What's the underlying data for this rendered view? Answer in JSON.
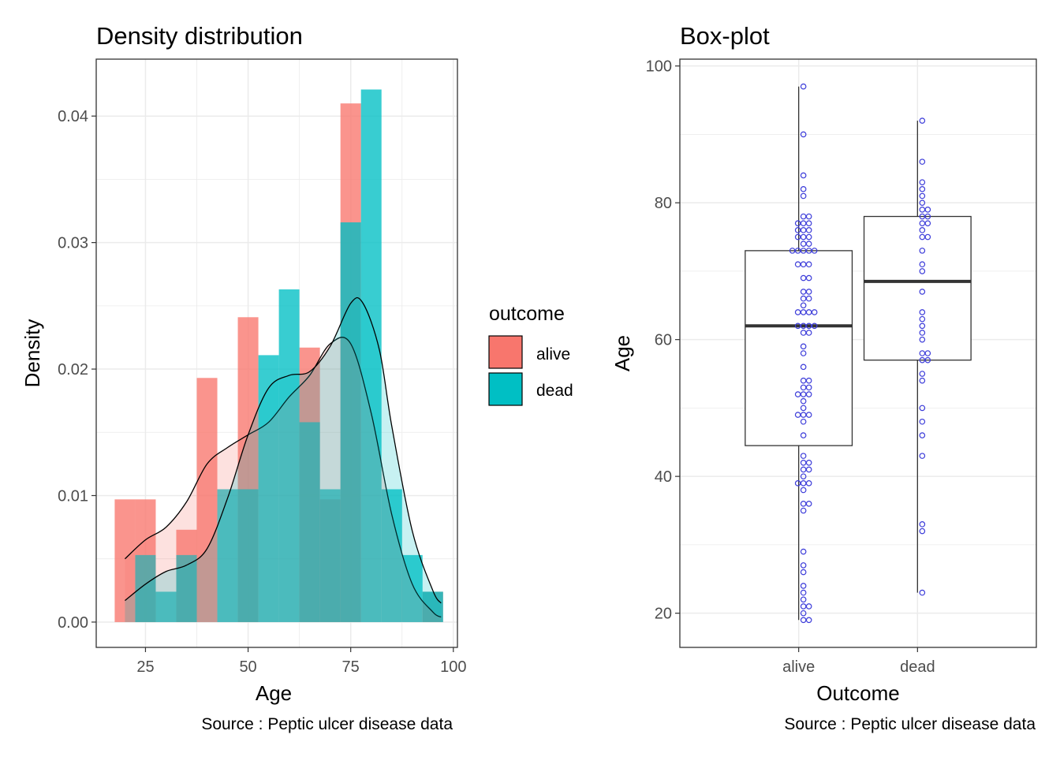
{
  "colors": {
    "alive": "#F8766D",
    "dead": "#00BFC4",
    "grid": "#EBEBEB",
    "points": "#3B3BD9",
    "text": "#4D4D4D"
  },
  "legend": {
    "title": "outcome",
    "items": [
      {
        "label": "alive",
        "color": "#F8766D"
      },
      {
        "label": "dead",
        "color": "#00BFC4"
      }
    ]
  },
  "chart_data": [
    {
      "type": "histogram-density",
      "title": "Density distribution",
      "xlabel": "Age",
      "ylabel": "Density",
      "caption": "Source : Peptic ulcer disease data",
      "xlim": [
        13,
        101
      ],
      "ylim": [
        -0.002,
        0.0445
      ],
      "xticks": [
        25,
        50,
        75,
        100
      ],
      "yticks": [
        0.0,
        0.01,
        0.02,
        0.03,
        0.04
      ],
      "ytick_labels": [
        "0.00",
        "0.01",
        "0.02",
        "0.03",
        "0.04"
      ],
      "grid": true,
      "legend_position": "right",
      "bin_width": 5,
      "bin_edges": [
        17.5,
        22.5,
        27.5,
        32.5,
        37.5,
        42.5,
        47.5,
        52.5,
        57.5,
        62.5,
        67.5,
        72.5,
        77.5,
        82.5,
        87.5,
        92.5,
        97.5
      ],
      "series": [
        {
          "name": "alive",
          "densities": [
            0.0097,
            0.0097,
            0.0,
            0.0073,
            0.0193,
            0.0,
            0.0241,
            0.0,
            0.0,
            0.0217,
            0.0097,
            0.041,
            0.0,
            0.0,
            0.0,
            0.0024
          ],
          "kde": {
            "x": [
              20,
              25,
              30,
              35,
              40,
              45,
              50,
              55,
              60,
              65,
              70,
              75,
              80,
              85,
              90,
              95,
              97
            ],
            "y": [
              0.005,
              0.0065,
              0.0075,
              0.0095,
              0.0125,
              0.0138,
              0.0148,
              0.0158,
              0.0178,
              0.0195,
              0.022,
              0.022,
              0.0165,
              0.0085,
              0.003,
              0.0008,
              0.0004
            ]
          }
        },
        {
          "name": "dead",
          "densities": [
            0.0,
            0.0053,
            0.0024,
            0.0053,
            0.0,
            0.0105,
            0.0105,
            0.0211,
            0.0263,
            0.0158,
            0.0105,
            0.0316,
            0.0421,
            0.0105,
            0.0053,
            0.0024
          ],
          "kde": {
            "x": [
              20,
              25,
              30,
              35,
              40,
              45,
              50,
              55,
              60,
              65,
              70,
              75,
              78,
              82,
              85,
              90,
              95,
              97
            ],
            "y": [
              0.0017,
              0.003,
              0.004,
              0.0045,
              0.0058,
              0.0098,
              0.0148,
              0.0185,
              0.0195,
              0.0198,
              0.0218,
              0.0252,
              0.0252,
              0.0215,
              0.0155,
              0.0072,
              0.0025,
              0.0015
            ]
          }
        }
      ]
    },
    {
      "type": "box",
      "title": "Box-plot",
      "xlabel": "Outcome",
      "ylabel": "Age",
      "caption": "Source : Peptic ulcer disease data",
      "categories": [
        "alive",
        "dead"
      ],
      "ylim": [
        15,
        101
      ],
      "yticks": [
        20,
        40,
        60,
        80,
        100
      ],
      "grid": true,
      "boxes": [
        {
          "name": "alive",
          "min": 19,
          "q1": 44.5,
          "median": 62,
          "q3": 73,
          "max": 97
        },
        {
          "name": "dead",
          "min": 23,
          "q1": 57,
          "median": 68.5,
          "q3": 78,
          "max": 92
        }
      ],
      "points": [
        {
          "name": "alive",
          "values": [
            97,
            90,
            84,
            82,
            81,
            78,
            78,
            77,
            77,
            77,
            76,
            76,
            76,
            75,
            75,
            75,
            74,
            74,
            73,
            73,
            73,
            73,
            73,
            71,
            71,
            71,
            69,
            69,
            67,
            67,
            66,
            66,
            65,
            64,
            64,
            64,
            64,
            62,
            62,
            62,
            62,
            61,
            61,
            59,
            58,
            56,
            54,
            54,
            53,
            53,
            52,
            52,
            52,
            51,
            50,
            49,
            49,
            49,
            48,
            46,
            43,
            42,
            42,
            41,
            41,
            40,
            39,
            39,
            39,
            38,
            36,
            36,
            35,
            29,
            27,
            26,
            24,
            23,
            22,
            21,
            21,
            20,
            19,
            19
          ]
        },
        {
          "name": "dead",
          "values": [
            92,
            86,
            83,
            82,
            81,
            80,
            79,
            79,
            78,
            78,
            77,
            77,
            76,
            75,
            75,
            73,
            71,
            70,
            67,
            64,
            63,
            62,
            61,
            60,
            58,
            58,
            57,
            57,
            55,
            54,
            50,
            48,
            46,
            43,
            33,
            32,
            23
          ]
        }
      ]
    }
  ]
}
